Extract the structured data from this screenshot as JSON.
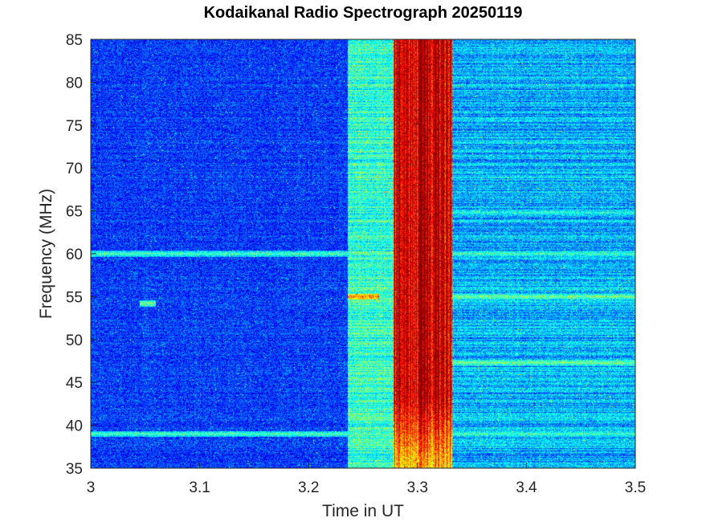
{
  "chart_data": {
    "type": "heatmap",
    "title": "Kodaikanal Radio Spectrograph  20250119",
    "xlabel": "Time in UT",
    "ylabel": "Frequency (MHz)",
    "xlim": [
      3.0,
      3.5
    ],
    "ylim": [
      35,
      85
    ],
    "xticks": [
      "3",
      "3.1",
      "3.2",
      "3.3",
      "3.4",
      "3.5"
    ],
    "xtick_values": [
      3.0,
      3.1,
      3.2,
      3.3,
      3.4,
      3.5
    ],
    "yticks": [
      "35",
      "40",
      "45",
      "50",
      "55",
      "60",
      "65",
      "70",
      "75",
      "80",
      "85"
    ],
    "ytick_values": [
      35,
      40,
      45,
      50,
      55,
      60,
      65,
      70,
      75,
      80,
      85
    ],
    "colormap": "jet",
    "grid": false,
    "intensity_regions": [
      {
        "t_start": 3.0,
        "t_end": 3.236,
        "level": 0.18
      },
      {
        "t_start": 3.236,
        "t_end": 3.278,
        "level": 0.42
      },
      {
        "t_start": 3.278,
        "t_end": 3.332,
        "level": 0.92
      },
      {
        "t_start": 3.332,
        "t_end": 3.5,
        "level": 0.3
      }
    ],
    "burst": {
      "t_start": 3.278,
      "t_end": 3.332,
      "f_low": 35,
      "f_high": 85,
      "level": 0.92
    },
    "horizontal_lines": [
      {
        "freq": 60.0,
        "t_start": 3.0,
        "t_end": 3.5,
        "level": 0.45
      },
      {
        "freq": 39.0,
        "t_start": 3.0,
        "t_end": 3.5,
        "level": 0.45
      },
      {
        "freq": 55.0,
        "t_start": 3.236,
        "t_end": 3.265,
        "level": 0.75
      },
      {
        "freq": 55.0,
        "t_start": 3.332,
        "t_end": 3.5,
        "level": 0.5
      },
      {
        "freq": 47.3,
        "t_start": 3.332,
        "t_end": 3.5,
        "level": 0.5
      },
      {
        "freq": 64.8,
        "t_start": 3.332,
        "t_end": 3.5,
        "level": 0.42
      },
      {
        "freq": 54.2,
        "t_start": 3.045,
        "t_end": 3.06,
        "level": 0.5
      }
    ]
  }
}
